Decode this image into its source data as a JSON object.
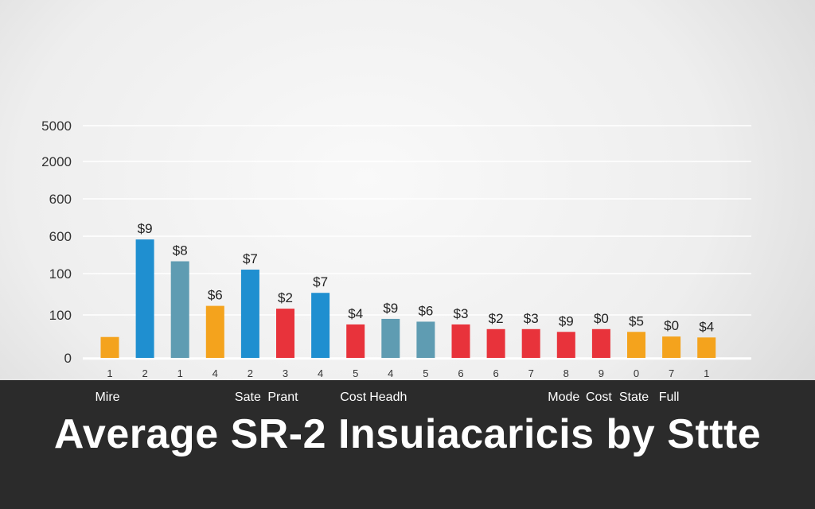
{
  "chart_data": {
    "type": "bar",
    "title": "Average SR-2 Insuiacaricis by Sttte",
    "y_tick_labels": [
      "5000",
      "2000",
      "600",
      "600",
      "100",
      "100",
      "0"
    ],
    "x_tick_labels": [
      "1",
      "2",
      "1",
      "4",
      "2",
      "3",
      "4",
      "5",
      "4",
      "5",
      "6",
      "6",
      "7",
      "8",
      "9",
      "0",
      "7",
      "1"
    ],
    "data_labels": [
      "",
      "$9",
      "$8",
      "$6",
      "$7",
      "$2",
      "$7",
      "$4",
      "$9",
      "$6",
      "$3",
      "$2",
      "$3",
      "$9",
      "$0",
      "$5",
      "$0",
      "$4"
    ],
    "bar_colors": [
      "#f4a31d",
      "#1f8fd0",
      "#5f9cb2",
      "#f4a31d",
      "#1f8fd0",
      "#e8333b",
      "#1f8fd0",
      "#e8333b",
      "#5f9cb2",
      "#5f9cb2",
      "#e8333b",
      "#e8333b",
      "#e8333b",
      "#e8333b",
      "#e8333b",
      "#f4a31d",
      "#f4a31d",
      "#f4a31d"
    ],
    "values": [
      45,
      255,
      208,
      112,
      190,
      106,
      140,
      72,
      84,
      78,
      72,
      62,
      62,
      56,
      62,
      56,
      46,
      44
    ],
    "category_labels": [
      "Mire",
      "",
      "",
      "",
      "Sate",
      "Prant",
      "",
      "Cost",
      "Headh",
      "",
      "",
      "",
      "",
      "Mode",
      "Cost",
      "State",
      "Full",
      ""
    ],
    "ylim": [
      0,
      500
    ],
    "grid": true
  }
}
